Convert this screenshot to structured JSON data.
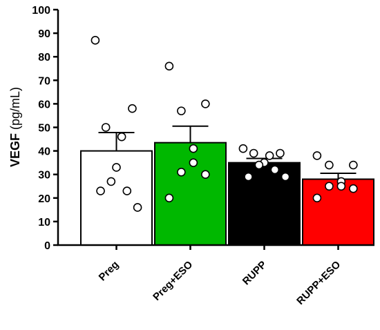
{
  "chart_data": {
    "type": "bar",
    "ylabel_bold": "VEGF",
    "ylabel_unit": " (pg/mL)",
    "xlabel": "",
    "ylim": [
      0,
      100
    ],
    "yticks": [
      "0",
      "10",
      "20",
      "30",
      "40",
      "50",
      "60",
      "70",
      "80",
      "90",
      "100"
    ],
    "categories": [
      "Preg",
      "Preg+ESO",
      "RUPP",
      "RUPP+ESO"
    ],
    "values": [
      40.0,
      43.5,
      35.0,
      28.0
    ],
    "sem": [
      7.8,
      7.0,
      1.8,
      2.5
    ],
    "colors": [
      "#ffffff",
      "#00b800",
      "#000000",
      "#ff0000"
    ],
    "points": [
      [
        87,
        58,
        50,
        46,
        33,
        27,
        23,
        23,
        16
      ],
      [
        76,
        60,
        57,
        41,
        35,
        31,
        30,
        20
      ],
      [
        41,
        39,
        39,
        38,
        35,
        34,
        32,
        29,
        29
      ],
      [
        38,
        34,
        34,
        27,
        25,
        25,
        24,
        20
      ]
    ],
    "grid": false,
    "legend": "none"
  }
}
